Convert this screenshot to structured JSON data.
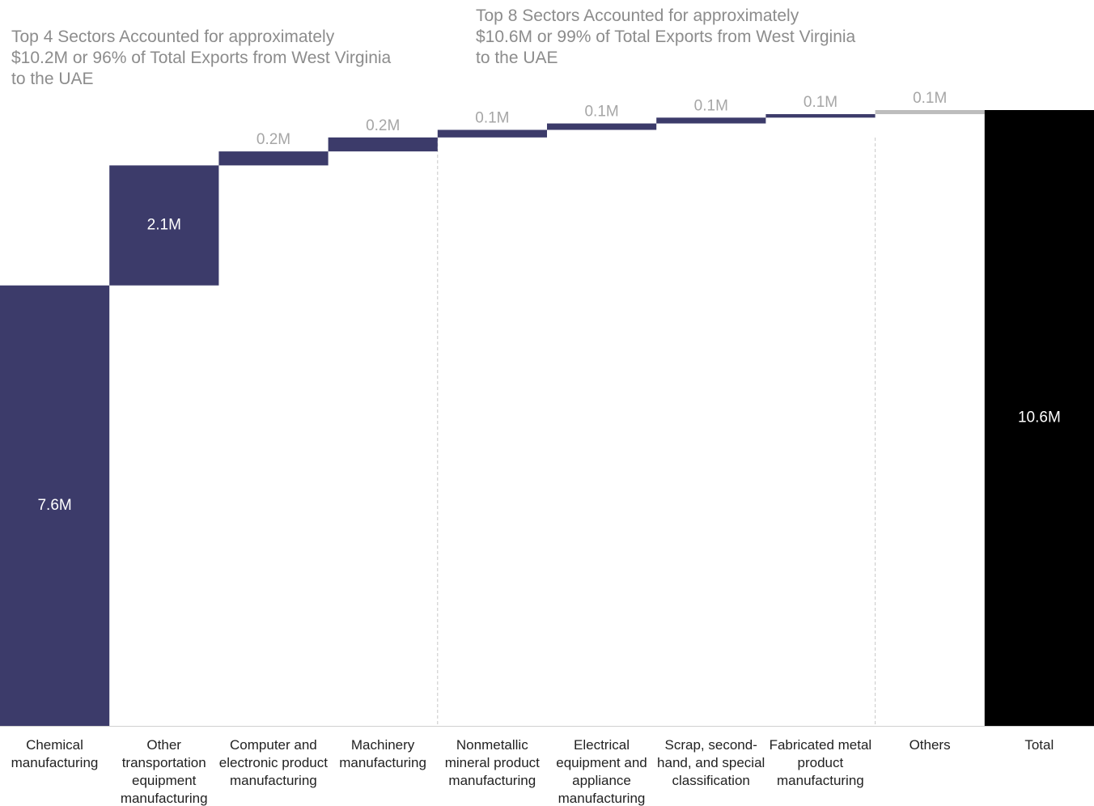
{
  "chart_data": {
    "type": "waterfall",
    "annotations": [
      "Top 4 Sectors Accounted for approximately $10.2M or 96% of Total Exports from West Virginia to the UAE",
      "Top 8 Sectors Accounted for approximately $10.6M or 99% of Total Exports from West Virginia to the UAE"
    ],
    "categories": [
      "Chemical manufacturing",
      "Other transportation equipment manufacturing",
      "Computer and electronic product manufacturing",
      "Machinery manufacturing",
      "Nonmetallic mineral product manufacturing",
      "Electrical equipment and appliance manufacturing",
      "Scrap, second-hand, and special classification",
      "Fabricated metal product manufacturing",
      "Others",
      "Total"
    ],
    "values": [
      7.56,
      2.06,
      0.24,
      0.24,
      0.13,
      0.11,
      0.1,
      0.06,
      0.07,
      10.57
    ],
    "value_labels": [
      "7.6M",
      "2.1M",
      "0.2M",
      "0.2M",
      "0.1M",
      "0.1M",
      "0.1M",
      "0.1M",
      "0.1M",
      "10.6M"
    ],
    "colors": [
      "#3c3b6a",
      "#3c3b6a",
      "#3c3b6a",
      "#3c3b6a",
      "#3c3b6a",
      "#3c3b6a",
      "#3c3b6a",
      "#3c3b6a",
      "#bdbdbd",
      "#000000"
    ],
    "total_index": 9,
    "divider_after": [
      4,
      8
    ]
  }
}
